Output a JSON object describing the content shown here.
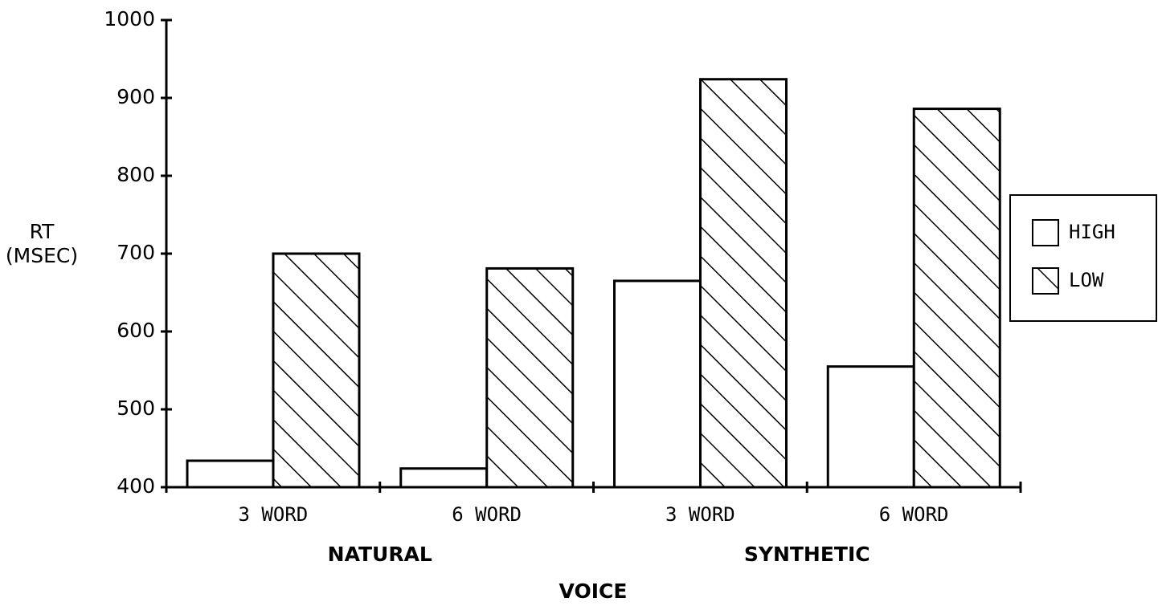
{
  "chart_data": {
    "type": "bar",
    "y_label": [
      "RT",
      "(MSEC)"
    ],
    "x_label": "VOICE",
    "categories": [
      "3 WORD",
      "6 WORD",
      "3 WORD",
      "6 WORD"
    ],
    "group_labels": [
      "NATURAL",
      "SYNTHETIC"
    ],
    "series": [
      {
        "name": "HIGH",
        "color": "#ffffff",
        "hatch": false,
        "values": [
          434,
          424,
          665,
          555
        ]
      },
      {
        "name": "LOW",
        "color": "#ffffff",
        "hatch": true,
        "values": [
          700,
          681,
          924,
          886
        ]
      }
    ],
    "ylim": [
      400,
      1000
    ],
    "yticks": [
      400,
      500,
      600,
      700,
      800,
      900,
      1000
    ],
    "legend": "right"
  }
}
